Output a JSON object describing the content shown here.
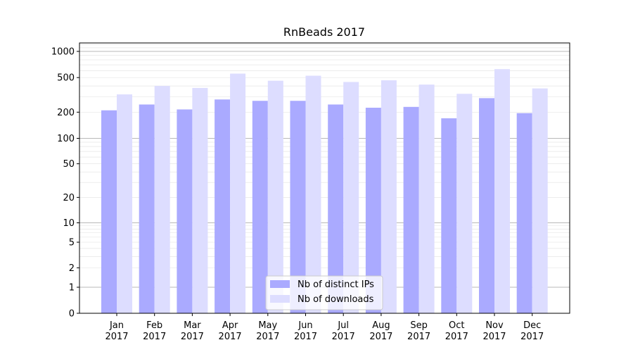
{
  "chart_data": {
    "type": "bar",
    "title": "RnBeads 2017",
    "xlabel": "",
    "ylabel": "",
    "yscale": "symlog",
    "ylim": [
      0,
      1300
    ],
    "yticks": [
      {
        "value": 0,
        "label": "0"
      },
      {
        "value": 1,
        "label": "1"
      },
      {
        "value": 2,
        "label": "2"
      },
      {
        "value": 5,
        "label": "5"
      },
      {
        "value": 10,
        "label": "10"
      },
      {
        "value": 20,
        "label": "20"
      },
      {
        "value": 50,
        "label": "50"
      },
      {
        "value": 100,
        "label": "100"
      },
      {
        "value": 200,
        "label": "200"
      },
      {
        "value": 500,
        "label": "500"
      },
      {
        "value": 1000,
        "label": "1000"
      }
    ],
    "categories": [
      {
        "month": "Jan",
        "year": "2017"
      },
      {
        "month": "Feb",
        "year": "2017"
      },
      {
        "month": "Mar",
        "year": "2017"
      },
      {
        "month": "Apr",
        "year": "2017"
      },
      {
        "month": "May",
        "year": "2017"
      },
      {
        "month": "Jun",
        "year": "2017"
      },
      {
        "month": "Jul",
        "year": "2017"
      },
      {
        "month": "Aug",
        "year": "2017"
      },
      {
        "month": "Sep",
        "year": "2017"
      },
      {
        "month": "Oct",
        "year": "2017"
      },
      {
        "month": "Nov",
        "year": "2017"
      },
      {
        "month": "Dec",
        "year": "2017"
      }
    ],
    "series": [
      {
        "name": "Nb of distinct IPs",
        "color": "#aaaaff",
        "values": [
          210,
          245,
          215,
          280,
          270,
          270,
          245,
          225,
          230,
          170,
          290,
          195
        ]
      },
      {
        "name": "Nb of downloads",
        "color": "#ddddff",
        "values": [
          320,
          400,
          380,
          555,
          460,
          525,
          445,
          465,
          415,
          325,
          625,
          375
        ]
      }
    ],
    "grid": true,
    "legend_position": "bottom-center"
  }
}
